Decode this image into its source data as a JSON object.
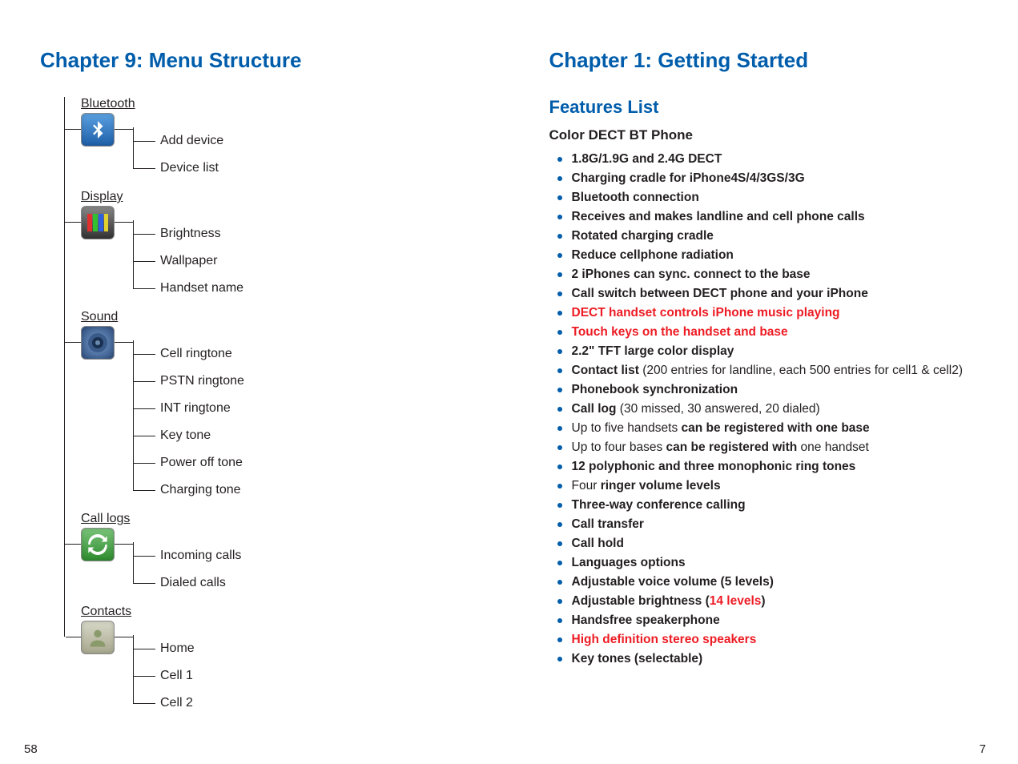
{
  "left": {
    "chapter": "Chapter 9: Menu Structure",
    "page_num": "58",
    "menu": [
      {
        "title": "Bluetooth",
        "icon": "bluetooth",
        "items": [
          "Add device",
          "Device list"
        ]
      },
      {
        "title": "Display",
        "icon": "display",
        "items": [
          "Brightness",
          "Wallpaper",
          "Handset name"
        ]
      },
      {
        "title": "Sound",
        "icon": "sound",
        "items": [
          "Cell ringtone",
          "PSTN ringtone",
          "INT ringtone",
          "Key tone",
          "Power off tone",
          "Charging tone"
        ]
      },
      {
        "title": "Call logs",
        "icon": "calllogs",
        "items": [
          "Incoming calls",
          "Dialed calls"
        ]
      },
      {
        "title": "Contacts",
        "icon": "contacts",
        "items": [
          "Home",
          "Cell 1",
          "Cell 2"
        ]
      }
    ]
  },
  "right": {
    "chapter": "Chapter 1: Getting Started",
    "section": "Features List",
    "sub": "Color DECT BT Phone",
    "page_num": "7",
    "features": [
      {
        "html": "1.8G/1.9G and 2.4G DECT"
      },
      {
        "html": "Charging cradle for iPhone4S/4/3GS/3G"
      },
      {
        "html": "Bluetooth connection"
      },
      {
        "html": "Receives and makes landline and cell phone calls"
      },
      {
        "html": "Rotated charging cradle"
      },
      {
        "html": "Reduce cellphone radiation"
      },
      {
        "html": "2 iPhones can sync. connect to the base"
      },
      {
        "html": "Call switch between DECT phone and your iPhone"
      },
      {
        "html": "<span class=\"red\">DECT handset controls iPhone music playing</span>"
      },
      {
        "html": "<span class=\"red\">Touch keys on the handset and base</span>"
      },
      {
        "html": "2.2\" TFT large color display"
      },
      {
        "html": "Contact list <span class=\"w500\">(200 entries for landline, each 500 entries for cell1 &amp; cell2)</span>"
      },
      {
        "html": "Phonebook synchronization"
      },
      {
        "html": "Call log <span class=\"w500\">(30 missed, 30 answered, 20 dialed)</span>"
      },
      {
        "html": "<span class=\"w500\">Up to five handsets </span>can be registered with one base"
      },
      {
        "html": "<span class=\"w500\">Up to four bases </span>can be registered with<span class=\"w500\"> one handset</span>"
      },
      {
        "html": "12 polyphonic and three monophonic ring tones"
      },
      {
        "html": "<span class=\"w500\">Four </span>ringer volume levels"
      },
      {
        "html": "Three-way conference calling"
      },
      {
        "html": "Call transfer"
      },
      {
        "html": "Call hold"
      },
      {
        "html": "Languages options"
      },
      {
        "html": "Adjustable voice volume (5 levels)"
      },
      {
        "html": "Adjustable brightness (<span class=\"red\">14 levels</span>)"
      },
      {
        "html": "Handsfree speakerphone"
      },
      {
        "html": "<span class=\"red\">High definition stereo speakers</span>"
      },
      {
        "html": "Key tones (selectable)"
      }
    ]
  },
  "icons": {
    "bluetooth": {
      "bg": "linear-gradient(#5aa0e0,#1e5fa8)"
    },
    "display": {
      "bg": "linear-gradient(#888,#333)"
    },
    "sound": {
      "bg": "radial-gradient(circle,#7aa0d0,#2b4a7a)"
    },
    "calllogs": {
      "bg": "linear-gradient(#7ac47a,#2e8b2e)"
    },
    "contacts": {
      "bg": "linear-gradient(#d8d8c8,#a8a890)"
    }
  },
  "colors": {
    "accent": "#005dab",
    "red": "#ed1c24",
    "text": "#231f20"
  }
}
